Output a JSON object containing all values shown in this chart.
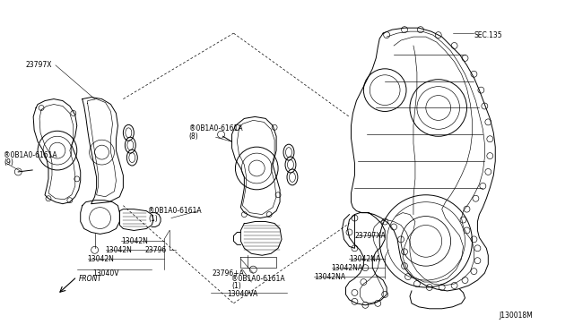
{
  "bg_color": "#ffffff",
  "line_color": "#000000",
  "fig_width": 6.4,
  "fig_height": 3.72,
  "dpi": 100,
  "diagram_id": "J130018M",
  "sec_label": "SEC.135",
  "front_label": "FRONT"
}
